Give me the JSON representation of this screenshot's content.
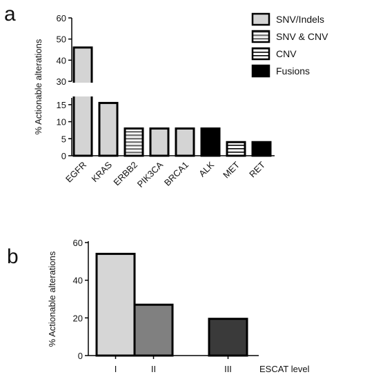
{
  "chart_data": [
    {
      "panel_label": "a",
      "type": "bar",
      "ylabel": "% Actionable alterations",
      "categories": [
        "EGFR",
        "KRAS",
        "ERBB2",
        "PIK3CA",
        "BRCA1",
        "ALK",
        "MET",
        "RET"
      ],
      "values": [
        46,
        15.5,
        8,
        8,
        8,
        8,
        4,
        4
      ],
      "series_type": [
        "SNV/Indels",
        "SNV/Indels",
        "SNV & CNV",
        "SNV/Indels",
        "SNV/Indels",
        "Fusions",
        "CNV",
        "Fusions"
      ],
      "y_axis_break": [
        17,
        30
      ],
      "yticks_lower": [
        0,
        5,
        10,
        15
      ],
      "yticks_upper": [
        30,
        40,
        50,
        60
      ],
      "ylim": [
        0,
        60
      ],
      "legend": {
        "placement": "top-right",
        "entries": [
          {
            "label": "SNV/Indels",
            "style": "solid-light-gray"
          },
          {
            "label": "SNV & CNV",
            "style": "horizontal-stripes-gray"
          },
          {
            "label": "CNV",
            "style": "horizontal-stripes-white"
          },
          {
            "label": "Fusions",
            "style": "solid-black"
          }
        ]
      },
      "colors": {
        "snv_indels": "#d4d4d4",
        "snv_cnv_stripe": "#888888",
        "cnv_stripe": "#000000",
        "fusions": "#000000"
      }
    },
    {
      "panel_label": "b",
      "type": "bar",
      "ylabel": "% Actionable alterations",
      "xlabel": "ESCAT level",
      "categories": [
        "I",
        "II",
        "III"
      ],
      "values": [
        54,
        27,
        19.5
      ],
      "yticks": [
        0,
        20,
        40,
        60
      ],
      "ylim": [
        0,
        60
      ],
      "colors": [
        "#d6d6d6",
        "#808080",
        "#3a3a3a"
      ]
    }
  ]
}
